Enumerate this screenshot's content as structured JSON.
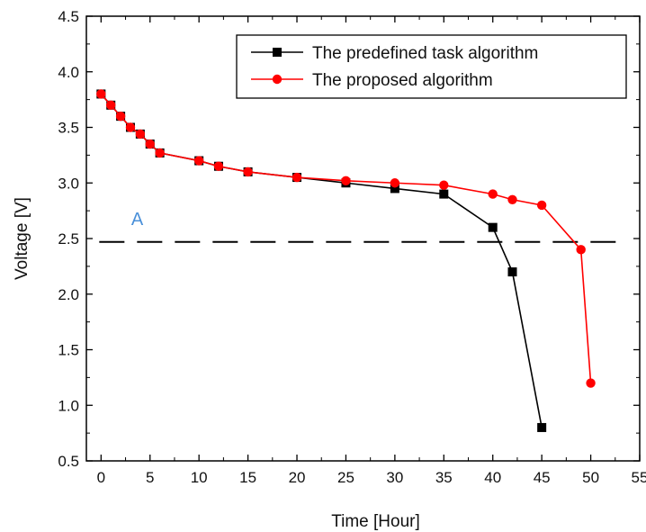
{
  "chart_data": {
    "type": "line",
    "xlabel": "Time [Hour]",
    "ylabel": "Voltage [V]",
    "xlim": [
      -1.5,
      55
    ],
    "ylim": [
      0.5,
      4.5
    ],
    "xticks": [
      0,
      5,
      10,
      15,
      20,
      25,
      30,
      35,
      40,
      45,
      50,
      55
    ],
    "yticks": [
      0.5,
      1.0,
      1.5,
      2.0,
      2.5,
      3.0,
      3.5,
      4.0,
      4.5
    ],
    "xtick_labels": [
      "0",
      "5",
      "10",
      "15",
      "20",
      "25",
      "30",
      "35",
      "40",
      "45",
      "50",
      "55"
    ],
    "ytick_labels": [
      "0.5",
      "1.0",
      "1.5",
      "2.0",
      "2.5",
      "3.0",
      "3.5",
      "4.0",
      "4.5"
    ],
    "legend_position": "top-right",
    "grid": false,
    "series": [
      {
        "name": "The predefined task algorithm",
        "color": "#000000",
        "marker": "square",
        "x": [
          0,
          1,
          2,
          3,
          4,
          5,
          6,
          10,
          12,
          15,
          20,
          25,
          30,
          35,
          40,
          42,
          45
        ],
        "y": [
          3.8,
          3.7,
          3.6,
          3.5,
          3.44,
          3.35,
          3.27,
          3.2,
          3.15,
          3.1,
          3.05,
          3.0,
          2.95,
          2.9,
          2.6,
          2.2,
          0.8
        ]
      },
      {
        "name": "The proposed algorithm",
        "color": "#ff0000",
        "marker": "circle",
        "x": [
          0,
          1,
          2,
          3,
          4,
          5,
          6,
          10,
          12,
          15,
          20,
          25,
          30,
          35,
          40,
          42,
          45,
          49,
          50
        ],
        "y": [
          3.8,
          3.7,
          3.6,
          3.5,
          3.44,
          3.35,
          3.27,
          3.2,
          3.15,
          3.1,
          3.05,
          3.02,
          3.0,
          2.98,
          2.9,
          2.85,
          2.8,
          2.4,
          1.2
        ]
      }
    ],
    "reference_line": {
      "y": 2.47,
      "style": "dashed",
      "color": "#000000",
      "label": "A"
    }
  }
}
